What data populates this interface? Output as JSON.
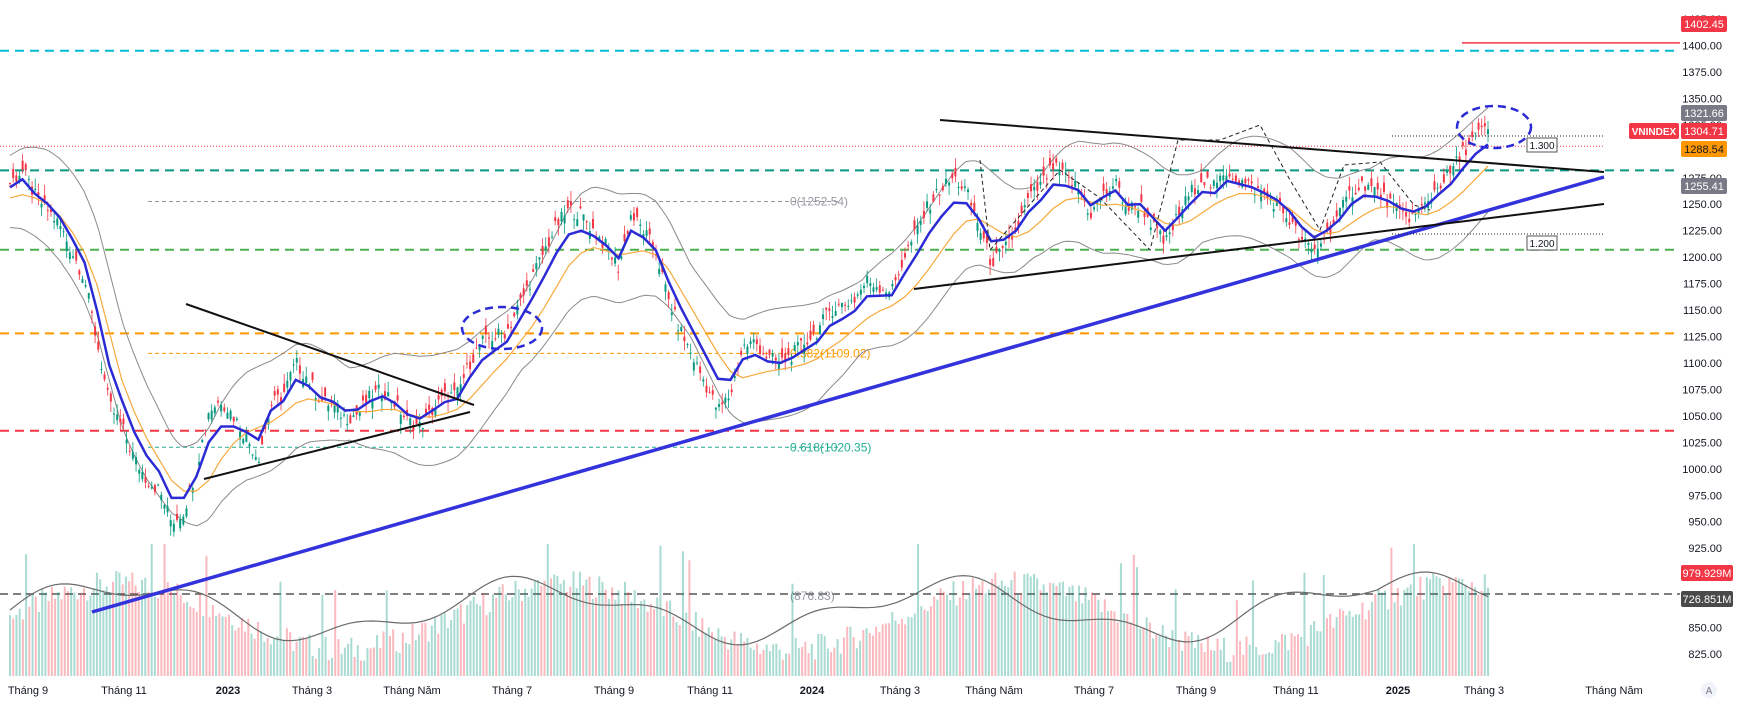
{
  "chart_data": {
    "type": "line",
    "symbol": "VNINDEX",
    "currency": "",
    "y_axis": {
      "min": 800,
      "max": 1425,
      "ticks": [
        825,
        850,
        875,
        900,
        925,
        950,
        975,
        1000,
        1025,
        1050,
        1075,
        1100,
        1125,
        1150,
        1175,
        1200,
        1225,
        1250,
        1275,
        1300,
        1325,
        1350,
        1375,
        1400,
        1425
      ]
    },
    "x_axis": {
      "ticks": [
        "Tháng 9",
        "Tháng 11",
        "2023",
        "Tháng 3",
        "Tháng Năm",
        "Tháng 7",
        "Tháng 9",
        "Tháng 11",
        "2024",
        "Tháng 3",
        "Tháng Năm",
        "Tháng 7",
        "Tháng 9",
        "Tháng 11",
        "2025",
        "Tháng 3",
        "Tháng Năm"
      ],
      "bold_ticks": [
        "2023",
        "2024",
        "2025"
      ]
    },
    "price_series": {
      "name": "VNINDEX",
      "values": [
        1270,
        1282,
        1258,
        1245,
        1230,
        1205,
        1180,
        1120,
        1060,
        1040,
        1010,
        990,
        980,
        950,
        960,
        1000,
        1055,
        1065,
        1050,
        1030,
        1010,
        1060,
        1070,
        1100,
        1085,
        1065,
        1060,
        1048,
        1052,
        1068,
        1075,
        1062,
        1045,
        1040,
        1055,
        1068,
        1070,
        1100,
        1120,
        1125,
        1130,
        1155,
        1180,
        1205,
        1230,
        1245,
        1240,
        1225,
        1210,
        1190,
        1240,
        1225,
        1205,
        1160,
        1130,
        1105,
        1080,
        1055,
        1070,
        1115,
        1120,
        1105,
        1100,
        1108,
        1120,
        1130,
        1150,
        1155,
        1160,
        1178,
        1172,
        1168,
        1200,
        1225,
        1250,
        1265,
        1275,
        1262,
        1230,
        1195,
        1205,
        1225,
        1255,
        1268,
        1285,
        1275,
        1265,
        1240,
        1258,
        1270,
        1245,
        1250,
        1230,
        1212,
        1238,
        1260,
        1275,
        1265,
        1282,
        1272,
        1266,
        1258,
        1250,
        1235,
        1215,
        1205,
        1222,
        1240,
        1262,
        1270,
        1262,
        1252,
        1240,
        1238,
        1250,
        1268,
        1280,
        1300,
        1315,
        1321
      ]
    },
    "ma_series": {
      "name": "",
      "values": [
        1262,
        1265,
        1262,
        1256,
        1245,
        1230,
        1210,
        1180,
        1135,
        1090,
        1060,
        1035,
        1015,
        995,
        985,
        985,
        995,
        1015,
        1030,
        1040,
        1045,
        1050,
        1058,
        1068,
        1072,
        1070,
        1067,
        1062,
        1060,
        1060,
        1062,
        1062,
        1058,
        1055,
        1055,
        1058,
        1062,
        1072,
        1085,
        1098,
        1110,
        1125,
        1140,
        1158,
        1178,
        1198,
        1210,
        1215,
        1212,
        1208,
        1210,
        1212,
        1208,
        1195,
        1175,
        1155,
        1135,
        1115,
        1098,
        1092,
        1095,
        1098,
        1100,
        1102,
        1105,
        1110,
        1120,
        1128,
        1138,
        1148,
        1155,
        1160,
        1168,
        1180,
        1195,
        1212,
        1228,
        1240,
        1242,
        1235,
        1228,
        1225,
        1230,
        1240,
        1252,
        1260,
        1262,
        1258,
        1255,
        1256,
        1254,
        1250,
        1245,
        1238,
        1236,
        1240,
        1248,
        1256,
        1262,
        1266,
        1266,
        1263,
        1258,
        1252,
        1242,
        1232,
        1228,
        1230,
        1238,
        1246,
        1252,
        1254,
        1252,
        1248,
        1246,
        1250,
        1258,
        1268,
        1280,
        1292
      ]
    },
    "price_levels": [
      {
        "label": "1402.45",
        "value": 1402.45,
        "color": "#f23645"
      },
      {
        "label": "1321.66",
        "value": 1321.66,
        "color": "#787b86"
      },
      {
        "label": "1304.71",
        "value": 1304.71,
        "color": "#f23645"
      },
      {
        "label": "1288.54",
        "value": 1288.54,
        "color": "#ff9800"
      },
      {
        "label": "1255.41",
        "value": 1255.41,
        "color": "#787b86"
      }
    ],
    "horizontal_lines": [
      {
        "value": 1395,
        "color": "#00bcd4"
      },
      {
        "value": 1282,
        "color": "#089981"
      },
      {
        "value": 1207,
        "color": "#4caf50"
      },
      {
        "value": 1128,
        "color": "#ff9800"
      },
      {
        "value": 1036,
        "color": "#f23645"
      }
    ],
    "fibonacci": [
      {
        "label": "0(1252.54)",
        "value": 1252.54,
        "color": "#9598a1"
      },
      {
        "label": "0.382(1109.02)",
        "value": 1109.02,
        "color": "#ff9800"
      },
      {
        "label": "0.618(1020.35)",
        "value": 1020.35,
        "color": "#22ab94"
      },
      {
        "label": "(876.83)",
        "value": 876.83,
        "color": "#9598a1"
      }
    ],
    "extension_labels": [
      {
        "label": "1.300",
        "value": 1290
      },
      {
        "label": "1.200",
        "value": 1200
      }
    ],
    "volume": {
      "labels": [
        {
          "label": "979.929M",
          "color": "#f23645"
        },
        {
          "label": "726.851M",
          "color": "#4a4a4a"
        }
      ]
    }
  },
  "ui": {
    "symbol_tag": "VNINDEX",
    "logo": "A"
  }
}
